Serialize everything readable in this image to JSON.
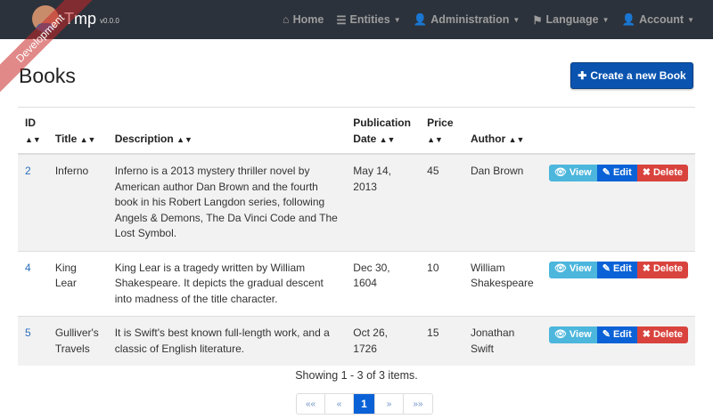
{
  "nav": {
    "brand": "Tmp",
    "version": "v0.0.0",
    "ribbon": "Development",
    "items": [
      {
        "icon": "home-icon",
        "glyph": "⌂",
        "label": "Home",
        "caret": false
      },
      {
        "icon": "list-icon",
        "glyph": "☰",
        "label": "Entities",
        "caret": true
      },
      {
        "icon": "user-plus-icon",
        "glyph": "👤",
        "label": "Administration",
        "caret": true
      },
      {
        "icon": "flag-icon",
        "glyph": "⚑",
        "label": "Language",
        "caret": true
      },
      {
        "icon": "user-icon",
        "glyph": "👤",
        "label": "Account",
        "caret": true
      }
    ]
  },
  "page": {
    "title": "Books",
    "create_label": "Create a new Book"
  },
  "table": {
    "headers": {
      "id": "ID",
      "title": "Title",
      "description": "Description",
      "date": "Publication Date",
      "price": "Price",
      "author": "Author"
    },
    "rows": [
      {
        "id": "2",
        "title": "Inferno",
        "description": "Inferno is a 2013 mystery thriller novel by American author Dan Brown and the fourth book in his Robert Langdon series, following Angels & Demons, The Da Vinci Code and The Lost Symbol.",
        "date": "May 14, 2013",
        "price": "45",
        "author": "Dan Brown"
      },
      {
        "id": "4",
        "title": "King Lear",
        "description": "King Lear is a tragedy written by William Shakespeare. It depicts the gradual descent into madness of the title character.",
        "date": "Dec 30, 1604",
        "price": "10",
        "author": "William Shakespeare"
      },
      {
        "id": "5",
        "title": "Gulliver's Travels",
        "description": "It is Swift's best known full-length work, and a classic of English literature.",
        "date": "Oct 26, 1726",
        "price": "15",
        "author": "Jonathan Swift"
      }
    ],
    "actions": {
      "view": "View",
      "edit": "Edit",
      "delete": "Delete"
    }
  },
  "footer": {
    "showing": "Showing 1 - 3 of 3 items.",
    "pages": [
      "««",
      "«",
      "1",
      "»",
      "»»"
    ],
    "active_page": "1"
  }
}
